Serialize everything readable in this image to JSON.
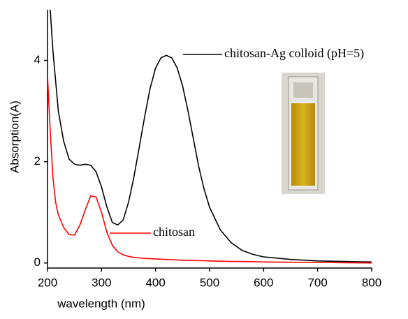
{
  "chart_data": {
    "type": "line",
    "x_label": "wavelength (nm)",
    "y_label": "Absorption(A)",
    "x": [
      200,
      205,
      210,
      215,
      220,
      230,
      240,
      250,
      260,
      270,
      280,
      290,
      300,
      310,
      320,
      330,
      340,
      350,
      360,
      370,
      380,
      390,
      400,
      410,
      420,
      430,
      440,
      450,
      460,
      470,
      480,
      490,
      500,
      520,
      540,
      560,
      580,
      600,
      650,
      700,
      750,
      800
    ],
    "series": [
      {
        "name": "chitosan-Ag colloid (pH=5)",
        "color": "#000000",
        "values": [
          null,
          5.0,
          4.2,
          3.6,
          3.0,
          2.4,
          2.05,
          1.95,
          1.93,
          1.95,
          1.93,
          1.8,
          1.5,
          1.1,
          0.8,
          0.75,
          0.85,
          1.2,
          1.7,
          2.3,
          2.9,
          3.45,
          3.85,
          4.05,
          4.1,
          4.05,
          3.85,
          3.5,
          3.0,
          2.45,
          1.9,
          1.45,
          1.1,
          0.65,
          0.4,
          0.25,
          0.17,
          0.12,
          0.07,
          0.04,
          0.03,
          0.02
        ]
      },
      {
        "name": "chitosan",
        "color": "#ff0000",
        "values": [
          3.7,
          2.6,
          1.7,
          1.2,
          0.95,
          0.7,
          0.56,
          0.55,
          0.75,
          1.05,
          1.33,
          1.3,
          1.0,
          0.6,
          0.35,
          0.22,
          0.16,
          0.13,
          0.11,
          0.1,
          0.09,
          0.085,
          0.08,
          0.075,
          0.07,
          0.065,
          0.06,
          0.055,
          0.05,
          0.05,
          0.045,
          0.045,
          0.04,
          0.035,
          0.03,
          0.03,
          0.025,
          0.02,
          0.015,
          0.01,
          0.005,
          0.0
        ]
      }
    ],
    "xlim": [
      200,
      800
    ],
    "xticks": [
      200,
      300,
      400,
      500,
      600,
      700,
      800
    ],
    "ylim": [
      -0.1,
      5
    ],
    "yticks": [
      0,
      2,
      4
    ],
    "grid": false
  }
}
